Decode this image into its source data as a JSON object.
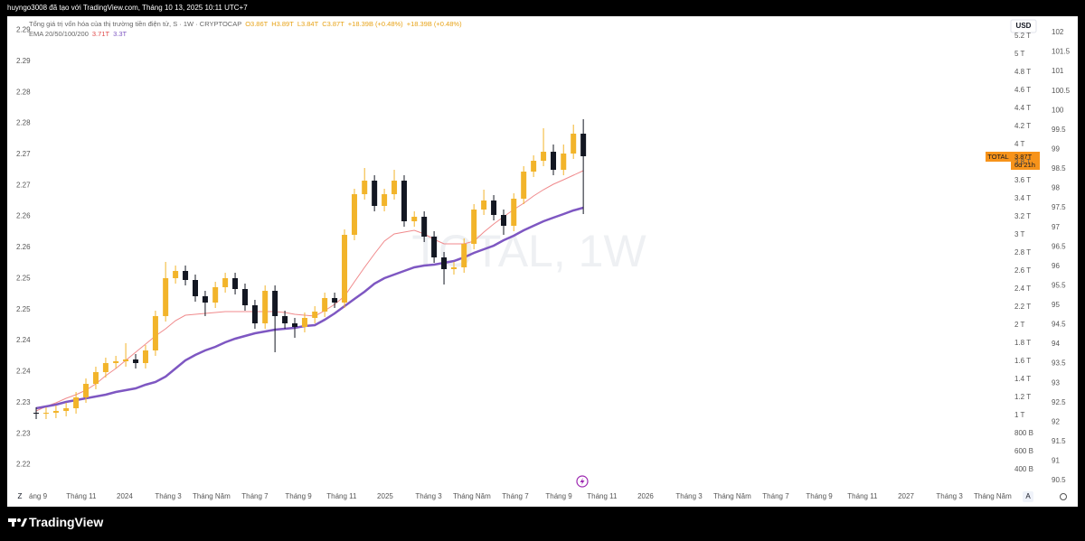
{
  "header": {
    "author_line": "huyngo3008 đã tạo với TradingView.com, Tháng 10 13, 2025 10:11 UTC+7"
  },
  "chart_data": {
    "type": "candlestick",
    "title": "Tổng giá trị vốn hóa của thị trường tiền điện tử, S · 1W · CRYPTOCAP",
    "ohlc_labels": [
      "O3.86T",
      "H3.89T",
      "L3.84T",
      "C3.87T",
      "+18.39B (+0.48%)",
      "+18.39B (+0.48%)"
    ],
    "indicator": "EMA 20/50/100/200",
    "indicator_values": [
      "3.71T",
      "3.3T"
    ],
    "watermark": "TOTAL, 1W",
    "price_tag": {
      "symbol": "TOTAL",
      "price": "3.87T",
      "countdown": "6d 21h"
    },
    "currency": "USD",
    "up_color": "#f2b42a",
    "down_color": "#131722",
    "x": [
      2023.66,
      2023.698,
      2023.736,
      2023.775,
      2023.813,
      2023.851,
      2023.889,
      2023.927,
      2023.966,
      2024.004,
      2024.042,
      2024.08,
      2024.118,
      2024.157,
      2024.195,
      2024.233,
      2024.271,
      2024.309,
      2024.348,
      2024.386,
      2024.424,
      2024.462,
      2024.5,
      2024.539,
      2024.577,
      2024.615,
      2024.653,
      2024.691,
      2024.73,
      2024.768,
      2024.806,
      2024.844,
      2024.882,
      2024.921,
      2024.959,
      2024.997,
      2025.035,
      2025.073,
      2025.112,
      2025.15,
      2025.188,
      2025.226,
      2025.264,
      2025.303,
      2025.341,
      2025.379,
      2025.417,
      2025.455,
      2025.494,
      2025.532,
      2025.57,
      2025.608,
      2025.646,
      2025.685,
      2025.723,
      2025.761
    ],
    "open": [
      1.03,
      1.02,
      1.03,
      1.05,
      1.08,
      1.2,
      1.35,
      1.48,
      1.58,
      1.6,
      1.62,
      1.58,
      1.72,
      2.1,
      2.52,
      2.6,
      2.5,
      2.32,
      2.25,
      2.42,
      2.52,
      2.4,
      2.22,
      2.02,
      2.38,
      2.1,
      2.02,
      1.98,
      2.08,
      2.15,
      2.3,
      2.25,
      3.0,
      3.45,
      3.6,
      3.32,
      3.45,
      3.6,
      3.15,
      3.2,
      2.98,
      2.75,
      2.62,
      2.64,
      2.9,
      3.28,
      3.38,
      3.22,
      3.1,
      3.4,
      3.7,
      3.82,
      3.92,
      3.72,
      3.9,
      4.12
    ],
    "high": [
      1.09,
      1.09,
      1.11,
      1.14,
      1.26,
      1.41,
      1.54,
      1.64,
      1.66,
      1.8,
      1.68,
      1.78,
      2.16,
      2.7,
      2.66,
      2.66,
      2.56,
      2.38,
      2.48,
      2.58,
      2.58,
      2.46,
      2.28,
      2.44,
      2.44,
      2.16,
      2.08,
      2.14,
      2.21,
      2.36,
      2.36,
      3.06,
      3.51,
      3.74,
      3.66,
      3.51,
      3.72,
      3.66,
      3.26,
      3.26,
      3.04,
      2.81,
      2.7,
      2.96,
      3.34,
      3.5,
      3.44,
      3.28,
      3.46,
      3.76,
      3.88,
      4.18,
      4.0,
      4.0,
      4.22,
      4.28
    ],
    "low": [
      0.96,
      0.96,
      0.97,
      0.99,
      1.02,
      1.14,
      1.29,
      1.42,
      1.52,
      1.54,
      1.52,
      1.52,
      1.66,
      2.04,
      2.46,
      2.44,
      2.26,
      2.1,
      2.19,
      2.36,
      2.34,
      2.16,
      1.96,
      1.96,
      1.7,
      1.96,
      1.86,
      1.92,
      2.02,
      2.09,
      2.19,
      2.19,
      2.94,
      3.39,
      3.26,
      3.26,
      3.39,
      3.09,
      3.09,
      2.92,
      2.69,
      2.45,
      2.56,
      2.58,
      2.84,
      3.22,
      3.16,
      3.0,
      3.04,
      3.34,
      3.64,
      3.76,
      3.66,
      3.66,
      3.84,
      3.23
    ],
    "close": [
      1.02,
      1.03,
      1.05,
      1.08,
      1.2,
      1.35,
      1.48,
      1.58,
      1.6,
      1.62,
      1.58,
      1.72,
      2.1,
      2.52,
      2.6,
      2.5,
      2.32,
      2.25,
      2.42,
      2.52,
      2.4,
      2.22,
      2.02,
      2.38,
      2.1,
      2.02,
      1.98,
      2.08,
      2.15,
      2.3,
      2.25,
      3.0,
      3.45,
      3.6,
      3.32,
      3.45,
      3.6,
      3.15,
      3.2,
      2.98,
      2.75,
      2.62,
      2.64,
      2.9,
      3.28,
      3.38,
      3.22,
      3.1,
      3.4,
      3.7,
      3.82,
      3.92,
      3.72,
      3.9,
      4.12,
      3.87
    ],
    "series": [
      {
        "color": "#f08a8c",
        "values": [
          1.05,
          1.1,
          1.14,
          1.19,
          1.23,
          1.28,
          1.35,
          1.44,
          1.52,
          1.61,
          1.7,
          1.79,
          1.88,
          1.96,
          2.05,
          2.11,
          2.12,
          2.13,
          2.14,
          2.15,
          2.15,
          2.15,
          2.15,
          2.15,
          2.15,
          2.14,
          2.12,
          2.11,
          2.1,
          2.16,
          2.23,
          2.32,
          2.48,
          2.64,
          2.79,
          2.93,
          3.01,
          3.03,
          3.05,
          3.01,
          2.95,
          2.9,
          2.9,
          2.9,
          2.93,
          3.03,
          3.12,
          3.2,
          3.28,
          3.35,
          3.43,
          3.5,
          3.56,
          3.61,
          3.66,
          3.71
        ]
      },
      {
        "color": "#7e57c2",
        "values": [
          1.08,
          1.1,
          1.12,
          1.15,
          1.17,
          1.19,
          1.21,
          1.23,
          1.26,
          1.28,
          1.3,
          1.34,
          1.37,
          1.43,
          1.52,
          1.61,
          1.67,
          1.72,
          1.76,
          1.81,
          1.85,
          1.88,
          1.91,
          1.93,
          1.95,
          1.96,
          1.97,
          1.99,
          2.0,
          2.06,
          2.13,
          2.21,
          2.29,
          2.37,
          2.46,
          2.52,
          2.56,
          2.6,
          2.64,
          2.66,
          2.67,
          2.69,
          2.71,
          2.75,
          2.8,
          2.84,
          2.88,
          2.94,
          2.99,
          3.05,
          3.1,
          3.15,
          3.19,
          3.23,
          3.27,
          3.3
        ]
      }
    ],
    "xlim": [
      2023.653,
      2027.375
    ],
    "xticks": [
      {
        "value": 2023.667,
        "label": "áng 9"
      },
      {
        "value": 2023.833,
        "label": "Tháng 11"
      },
      2024,
      {
        "value": 2024.167,
        "label": "Tháng 3"
      },
      {
        "value": 2024.333,
        "label": "Tháng Năm"
      },
      {
        "value": 2024.5,
        "label": "Tháng 7"
      },
      {
        "value": 2024.667,
        "label": "Tháng 9"
      },
      {
        "value": 2024.833,
        "label": "Tháng 11"
      },
      2025,
      {
        "value": 2025.167,
        "label": "Tháng 3"
      },
      {
        "value": 2025.333,
        "label": "Tháng Năm"
      },
      {
        "value": 2025.5,
        "label": "Tháng 7"
      },
      {
        "value": 2025.667,
        "label": "Tháng 9"
      },
      {
        "value": 2025.833,
        "label": "Tháng 11"
      },
      2026,
      {
        "value": 2026.167,
        "label": "Tháng 3"
      },
      {
        "value": 2026.333,
        "label": "Tháng Năm"
      },
      {
        "value": 2026.5,
        "label": "Tháng 7"
      },
      {
        "value": 2026.667,
        "label": "Tháng 9"
      },
      {
        "value": 2026.833,
        "label": "Tháng 11"
      },
      2027,
      {
        "value": 2027.167,
        "label": "Tháng 3"
      },
      {
        "value": 2027.333,
        "label": "Tháng Năm"
      }
    ],
    "ylim": [
      0.2,
      5.3
    ],
    "yticks": [
      {
        "value": 0.4,
        "label": "400 B"
      },
      {
        "value": 0.6,
        "label": "600 B"
      },
      {
        "value": 0.8,
        "label": "800 B"
      },
      {
        "value": 1,
        "label": "1 T"
      },
      {
        "value": 1.2,
        "label": "1.2 T"
      },
      {
        "value": 1.4,
        "label": "1.4 T"
      },
      {
        "value": 1.6,
        "label": "1.6 T"
      },
      {
        "value": 1.8,
        "label": "1.8 T"
      },
      {
        "value": 2,
        "label": "2 T"
      },
      {
        "value": 2.2,
        "label": "2.2 T"
      },
      {
        "value": 2.4,
        "label": "2.4 T"
      },
      {
        "value": 2.6,
        "label": "2.6 T"
      },
      {
        "value": 2.8,
        "label": "2.8 T"
      },
      {
        "value": 3,
        "label": "3 T"
      },
      {
        "value": 3.2,
        "label": "3.2 T"
      },
      {
        "value": 3.4,
        "label": "3.4 T"
      },
      {
        "value": 3.6,
        "label": "3.6 T"
      },
      {
        "value": 3.8,
        "label": "3.8 T"
      },
      {
        "value": 4,
        "label": "4 T"
      },
      {
        "value": 4.2,
        "label": "4.2 T"
      },
      {
        "value": 4.4,
        "label": "4.4 T"
      },
      {
        "value": 4.6,
        "label": "4.6 T"
      },
      {
        "value": 4.8,
        "label": "4.8 T"
      },
      {
        "value": 5,
        "label": "5 T"
      },
      {
        "value": 5.2,
        "label": "5.2 T"
      }
    ],
    "y2lim": [
      2.2163,
      2.2905
    ],
    "y2ticks": [
      2.29,
      {
        "value": 2.285,
        "label": "2.29"
      },
      2.28,
      {
        "value": 2.275,
        "label": "2.28"
      },
      2.27,
      {
        "value": 2.265,
        "label": "2.27"
      },
      2.26,
      {
        "value": 2.255,
        "label": "2.26"
      },
      2.25,
      {
        "value": 2.245,
        "label": "2.25"
      },
      2.24,
      {
        "value": 2.235,
        "label": "2.24"
      },
      2.23,
      {
        "value": 2.225,
        "label": "2.23"
      },
      2.22
    ],
    "y3lim": [
      90.315,
      102.139
    ],
    "y3ticks": [
      102,
      101.5,
      101,
      100.5,
      100,
      99.5,
      99,
      98.5,
      98,
      97.5,
      97,
      96.5,
      96,
      95.5,
      95,
      94.5,
      94,
      93.5,
      93,
      92.5,
      92,
      91.5,
      91,
      90.5
    ]
  },
  "footer": {
    "brand": "TradingView",
    "left_button": "Z",
    "right_button": "A"
  }
}
